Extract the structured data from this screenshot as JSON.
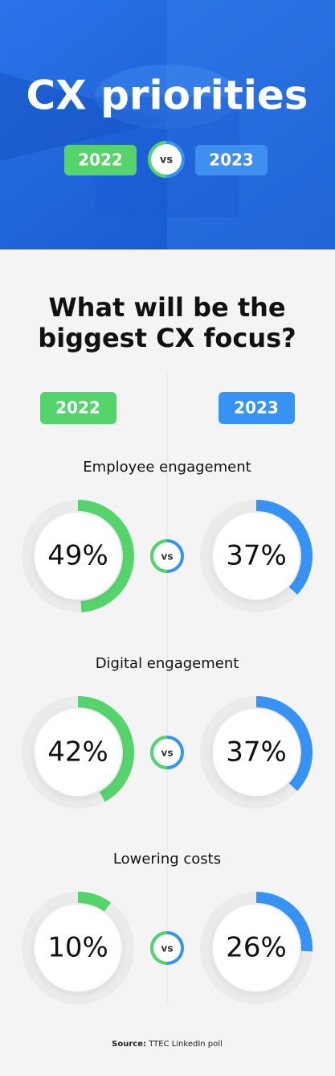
{
  "header": {
    "title": "CX priorities",
    "left": "2022",
    "versus": "vs",
    "right": "2023"
  },
  "subtitle": [
    "What will be the",
    "biggest CX focus?"
  ],
  "chart_data": [
    {
      "type": "donut",
      "title": "Employee engagement",
      "max": 100,
      "series": [
        {
          "name": "2022",
          "color": "#56d46c",
          "values": [
            49
          ],
          "value_labels": [
            "49%"
          ]
        },
        {
          "name": "2023",
          "color": "#3693f5",
          "values": [
            37
          ],
          "value_labels": [
            "37%"
          ]
        }
      ]
    },
    {
      "type": "donut",
      "title": "Digital engagement",
      "max": 100,
      "series": [
        {
          "name": "2022",
          "color": "#56d46c",
          "values": [
            42
          ],
          "value_labels": [
            "42%"
          ]
        },
        {
          "name": "2023",
          "color": "#3693f5",
          "values": [
            37
          ],
          "value_labels": [
            "37%"
          ]
        }
      ]
    },
    {
      "type": "donut",
      "title": "Lowering costs",
      "max": 100,
      "series": [
        {
          "name": "2022",
          "color": "#56d46c",
          "values": [
            10
          ],
          "value_labels": [
            "10%"
          ]
        },
        {
          "name": "2023",
          "color": "#3693f5",
          "values": [
            26
          ],
          "value_labels": [
            "26%"
          ]
        }
      ]
    }
  ],
  "source": {
    "label": "Source:",
    "text": "TTEC LinkedIn poll"
  }
}
